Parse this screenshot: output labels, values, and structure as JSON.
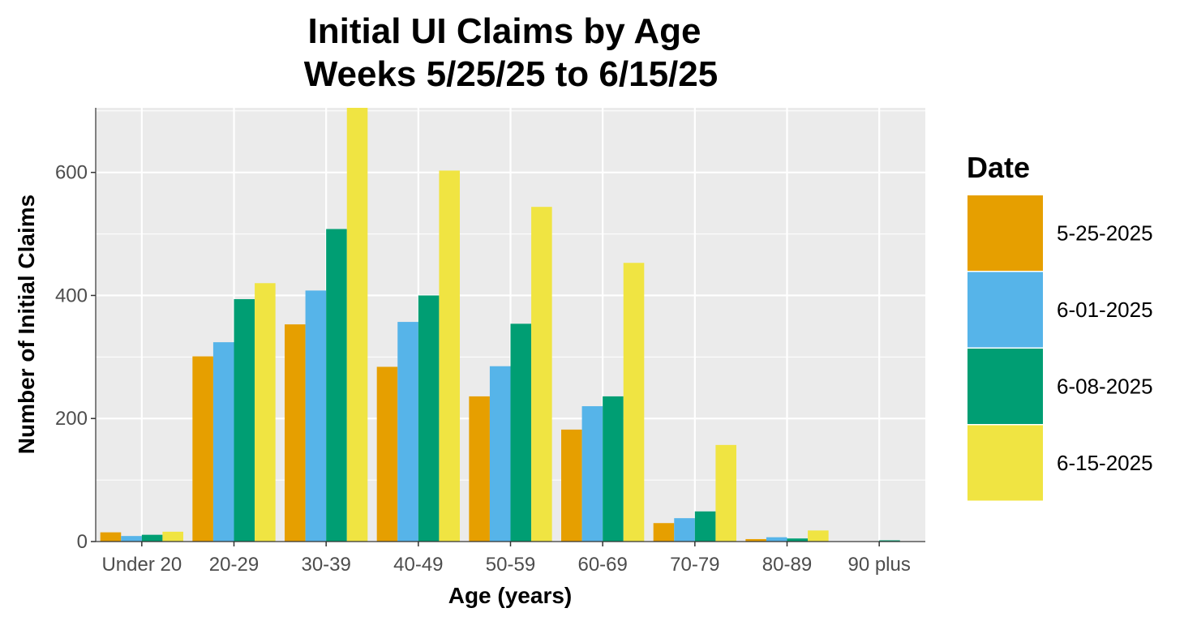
{
  "chart_data": {
    "type": "bar",
    "title_lines": [
      "Initial UI Claims by Age",
      "Weeks  5/25/25 to 6/15/25"
    ],
    "xlabel": "Age (years)",
    "ylabel": "Number of Initial Claims",
    "categories": [
      "Under 20",
      "20-29",
      "30-39",
      "40-49",
      "50-59",
      "60-69",
      "70-79",
      "80-89",
      "90 plus"
    ],
    "ylim": [
      0,
      705
    ],
    "yticks": [
      0,
      200,
      400,
      600
    ],
    "grid": true,
    "legend": {
      "title": "Date",
      "position": "right"
    },
    "series": [
      {
        "name": "5-25-2025",
        "color": "#E69F00",
        "values": [
          15,
          301,
          353,
          284,
          236,
          182,
          30,
          4,
          0
        ]
      },
      {
        "name": "6-01-2025",
        "color": "#56B4E9",
        "values": [
          9,
          324,
          408,
          357,
          285,
          220,
          38,
          7,
          0
        ]
      },
      {
        "name": "6-08-2025",
        "color": "#009E73",
        "values": [
          11,
          394,
          508,
          400,
          354,
          236,
          49,
          5,
          2
        ]
      },
      {
        "name": "6-15-2025",
        "color": "#F0E442",
        "values": [
          16,
          420,
          705,
          603,
          544,
          453,
          157,
          18,
          0
        ]
      }
    ]
  }
}
